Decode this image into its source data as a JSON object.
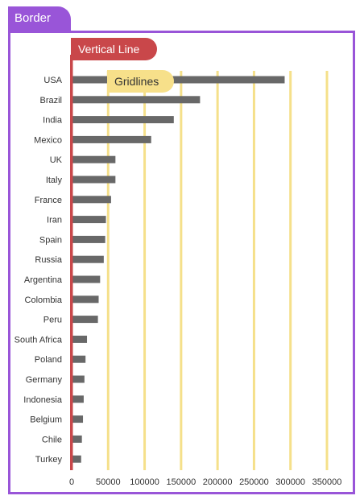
{
  "annotations": {
    "border_label": "Border",
    "vertical_line_label": "Vertical Line",
    "gridlines_label": "Gridlines"
  },
  "colors": {
    "border": "#9955d8",
    "vertical_line": "#c9474a",
    "gridlines": "#f5e08a",
    "gridlines_callout": "#f7e08a",
    "bars": "#686868"
  },
  "chart_data": {
    "type": "bar",
    "orientation": "horizontal",
    "categories": [
      "USA",
      "Brazil",
      "India",
      "Mexico",
      "UK",
      "Italy",
      "France",
      "Iran",
      "Spain",
      "Russia",
      "Argentina",
      "Colombia",
      "Peru",
      "South Africa",
      "Poland",
      "Germany",
      "Indonesia",
      "Belgium",
      "Chile",
      "Turkey"
    ],
    "values": [
      292000,
      176000,
      140000,
      109000,
      60000,
      60000,
      54000,
      47000,
      46000,
      44000,
      39000,
      37000,
      36000,
      21000,
      19000,
      17500,
      16500,
      15500,
      14000,
      13000
    ],
    "xticks": [
      0,
      50000,
      100000,
      150000,
      200000,
      250000,
      300000,
      350000
    ],
    "xlim": [
      0,
      350000
    ],
    "grid": true
  }
}
